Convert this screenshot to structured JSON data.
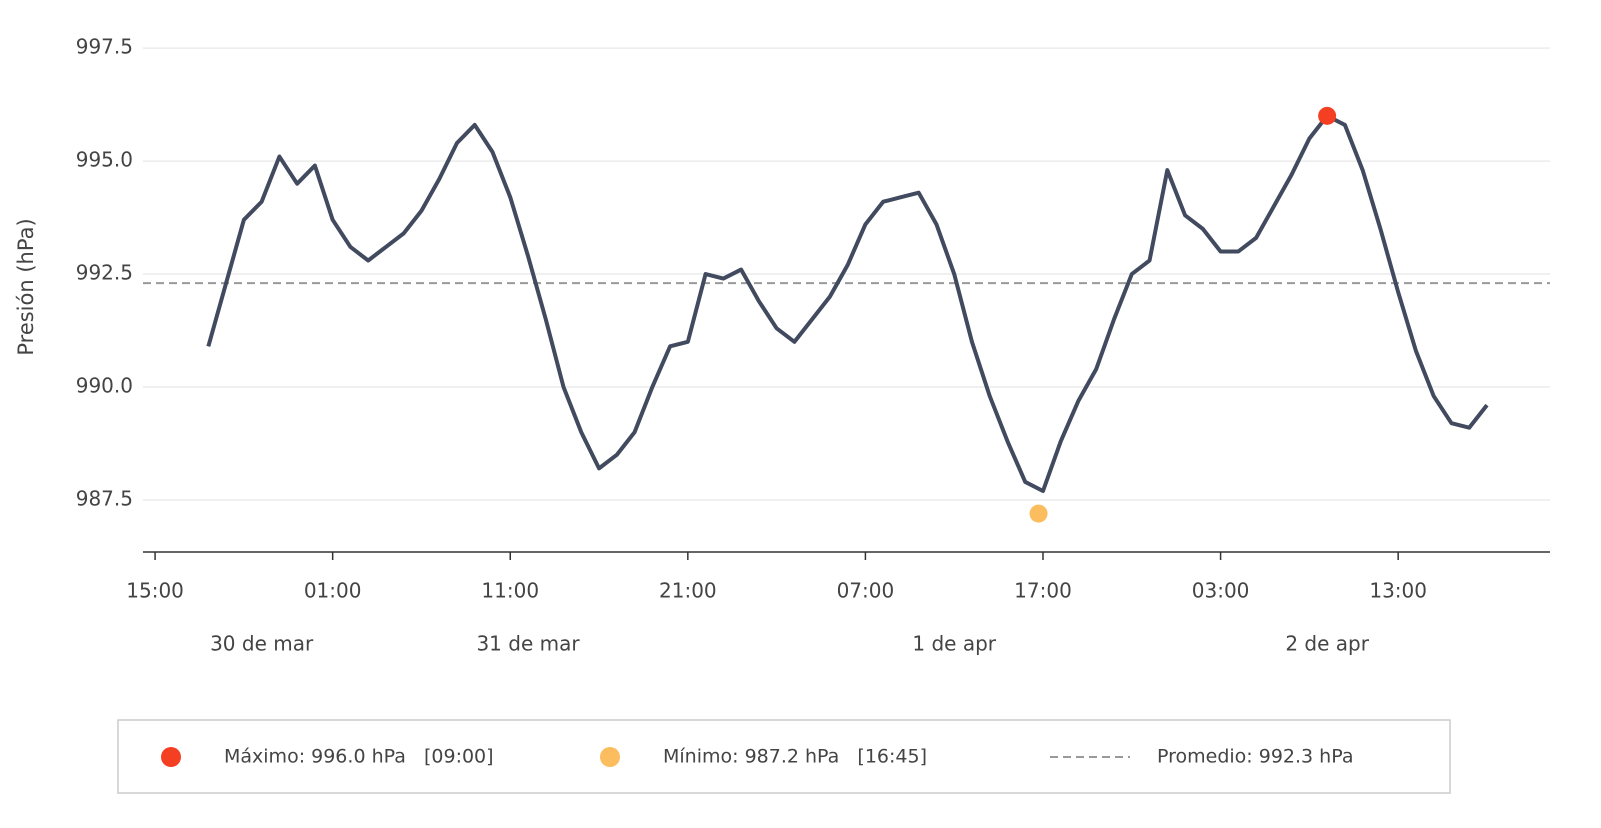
{
  "chart_data": {
    "type": "line",
    "y_label": "Presión (hPa)",
    "x": [
      3,
      4,
      5,
      6,
      7,
      8,
      9,
      10,
      11,
      12,
      13,
      14,
      15,
      16,
      17,
      18,
      19,
      20,
      21,
      22,
      23,
      24,
      25,
      26,
      27,
      28,
      29,
      30,
      31,
      32,
      33,
      34,
      35,
      36,
      37,
      38,
      39,
      40,
      41,
      42,
      43,
      44,
      45,
      46,
      47,
      48,
      49,
      50,
      51,
      52,
      53,
      54,
      55,
      56,
      57,
      58,
      59,
      60,
      61,
      62,
      63,
      64,
      65,
      66,
      67,
      68,
      69,
      70,
      71,
      72,
      73,
      74,
      75
    ],
    "series": [
      {
        "color": "#414a5e",
        "values": [
          990.9,
          992.3,
          993.7,
          994.1,
          995.1,
          994.5,
          994.9,
          993.7,
          993.1,
          992.8,
          993.1,
          993.4,
          993.9,
          994.6,
          995.4,
          995.8,
          995.2,
          994.2,
          992.9,
          991.5,
          990.0,
          989.0,
          988.2,
          988.5,
          989.0,
          990.0,
          990.9,
          991.0,
          992.5,
          992.4,
          992.6,
          991.9,
          991.3,
          991.0,
          991.5,
          992.0,
          992.7,
          993.6,
          994.1,
          994.2,
          994.3,
          993.6,
          992.5,
          991.0,
          989.8,
          988.8,
          987.9,
          987.7,
          988.8,
          989.7,
          990.4,
          991.5,
          992.5,
          992.8,
          994.8,
          993.8,
          993.5,
          993.0,
          993.0,
          993.3,
          994.0,
          994.7,
          995.5,
          996.0,
          995.8,
          994.8,
          993.5,
          992.1,
          990.8,
          989.8,
          989.2,
          989.1,
          989.6
        ]
      }
    ],
    "markers": [
      {
        "name": "Máximo: 996.0 hPa   [09:00]",
        "color": "#f43f23",
        "x": 66,
        "y": 996.0
      },
      {
        "name": "Mínimo: 987.2 hPa   [16:45]",
        "color": "#fbbd5e",
        "x": 49.75,
        "y": 987.2
      }
    ],
    "reference_line": {
      "name": "Promedio: 992.3 hPa",
      "value": 992.3,
      "color": "#999999"
    },
    "xlim": [
      -0.68,
      78.55
    ],
    "xticks": [
      {
        "value": 0,
        "label": "15:00"
      },
      {
        "value": 10,
        "label": "01:00"
      },
      {
        "value": 20,
        "label": "11:00"
      },
      {
        "value": 30,
        "label": "21:00"
      },
      {
        "value": 40,
        "label": "07:00"
      },
      {
        "value": 50,
        "label": "17:00"
      },
      {
        "value": 60,
        "label": "03:00"
      },
      {
        "value": 70,
        "label": "13:00"
      }
    ],
    "date_labels": [
      {
        "value": 6,
        "label": "30 de mar"
      },
      {
        "value": 21,
        "label": "31 de mar"
      },
      {
        "value": 45,
        "label": "1 de apr"
      },
      {
        "value": 66,
        "label": "2 de apr"
      }
    ],
    "ylim": [
      986.35,
      997.9
    ],
    "yticks": [
      {
        "value": 987.5,
        "label": "987.5"
      },
      {
        "value": 990,
        "label": "990.0"
      },
      {
        "value": 992.5,
        "label": "992.5"
      },
      {
        "value": 995,
        "label": "995.0"
      },
      {
        "value": 997.5,
        "label": "997.5"
      }
    ],
    "grid": true
  }
}
